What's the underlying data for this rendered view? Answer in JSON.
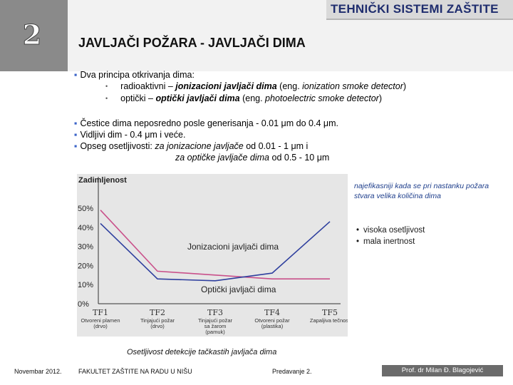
{
  "slide": {
    "number": "2",
    "brand": "TEHNIČKI SISTEMI ZAŠTITE",
    "title": "JAVLJAČI POŽARA - JAVLJAČI DIMA"
  },
  "principles": {
    "heading": "Dva principa otkrivanja dima:",
    "items": [
      {
        "prefix": "radioaktivni – ",
        "bold_italic": "jonizacioni javljači dima",
        "suffix": " (eng. ",
        "italic": "ionization smoke detector",
        "end": ")"
      },
      {
        "prefix": "optički – ",
        "bold_italic": "optički javljači dima",
        "suffix": " (eng. ",
        "italic": "photoelectric smoke detector",
        "end": ")"
      }
    ]
  },
  "facts": {
    "line1": "Čestice dima neposredno posle generisanja - 0.01 μm do 0.4 μm.",
    "line2": "Vidljivi dim - 0.4 μm i veće.",
    "line3_prefix": "Opseg osetljivosti: ",
    "line3_italic": "za jonizacione javljače",
    "line3_suffix": " od  0.01 - 1 μm i",
    "line4_italic": "za optičke javljače dima",
    "line4_suffix": " od 0.5 - 10 μm"
  },
  "chart_data": {
    "type": "line",
    "ylabel": "Zadimljenost",
    "yticks": [
      "0%",
      "10%",
      "20%",
      "30%",
      "40%",
      "50%"
    ],
    "ylim": [
      0,
      55
    ],
    "categories": [
      "TF1",
      "TF2",
      "TF3",
      "TF4",
      "TF5"
    ],
    "category_sublabels": [
      "Otvoreni plamen (drvo)",
      "Tinjajući požar (drvo)",
      "Tinjajući požar sa žarom (pamuk)",
      "Otvoreni požar (plastika)",
      "Zapaljiva tečnost"
    ],
    "series": [
      {
        "name": "Jonizacioni javljači dima",
        "color": "#c9508a",
        "values": [
          49,
          17,
          15,
          13,
          13
        ]
      },
      {
        "name": "Optički javljači dima",
        "color": "#2e3f9e",
        "values": [
          42,
          13,
          12,
          16,
          43
        ]
      }
    ],
    "grid": false,
    "background": "#e6e6e6"
  },
  "notes": {
    "side": "najefikasniji kada se pri nastanku požara stvara velika količina dima",
    "features": [
      "visoka osetljivost",
      "mala inertnost"
    ],
    "caption": "Osetljivost detekcije tačkastih javljača dima"
  },
  "footer": {
    "date": "Novembar 2012.",
    "faculty": "FAKULTET ZAŠTITE NA RADU U NIŠU",
    "lecture": "Predavanje 2.",
    "author": "Prof. dr Milan Đ. Blagojević"
  }
}
